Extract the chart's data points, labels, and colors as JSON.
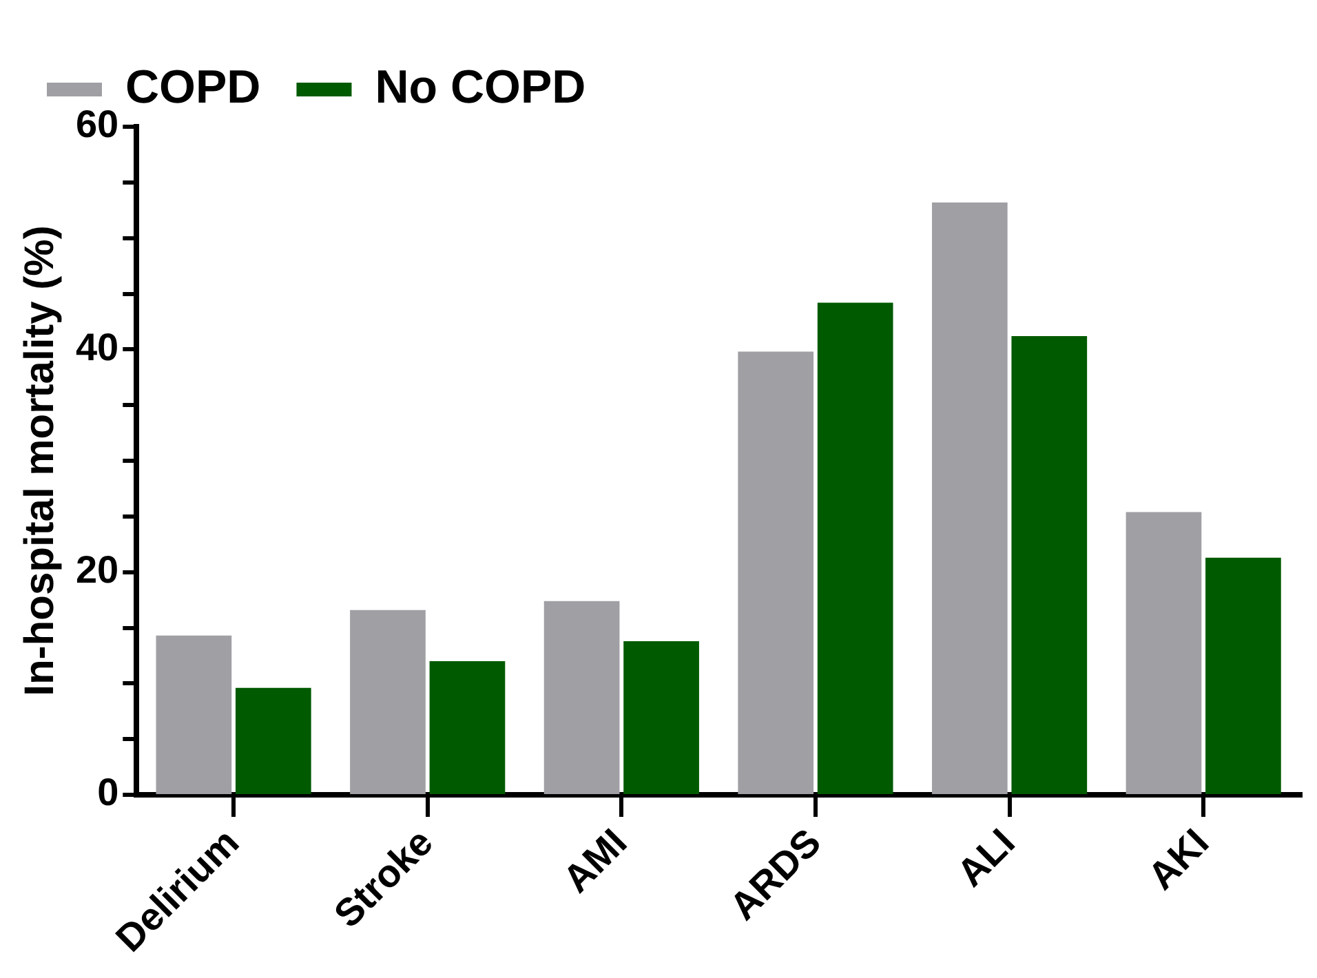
{
  "chart_data": {
    "type": "bar",
    "ylabel": "In-hospital mortality (%)",
    "categories": [
      "Delirium",
      "Stroke",
      "AMI",
      "ARDS",
      "ALI",
      "AKI"
    ],
    "series": [
      {
        "name": "COPD",
        "color": "#a09fa4",
        "values": [
          14.3,
          16.6,
          17.4,
          39.8,
          53.2,
          25.4
        ]
      },
      {
        "name": "No COPD",
        "color": "#005a00",
        "values": [
          9.6,
          12.0,
          13.8,
          44.2,
          41.2,
          21.3
        ]
      }
    ],
    "ylim": [
      0,
      60
    ],
    "yticks": [
      0,
      {
        "value": 5,
        "label": null
      },
      {
        "value": 10,
        "label": null
      },
      {
        "value": 15,
        "label": null
      },
      20,
      {
        "value": 25,
        "label": null
      },
      {
        "value": 30,
        "label": null
      },
      {
        "value": 35,
        "label": null
      },
      40,
      {
        "value": 45,
        "label": null
      },
      {
        "value": 50,
        "label": null
      },
      {
        "value": 55,
        "label": null
      },
      60
    ],
    "grid": false,
    "legend": "top left"
  }
}
